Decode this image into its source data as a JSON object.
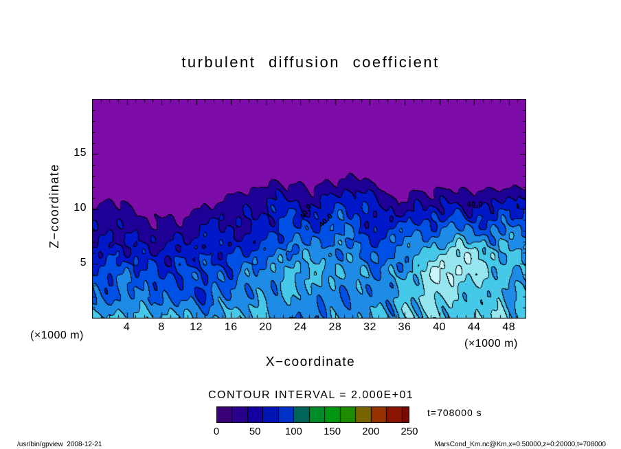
{
  "title": "turbulent diffusion coefficient",
  "axes": {
    "x_label": "X−coordinate",
    "z_label": "Z−coordinate",
    "x_unit": "(×1000 m)",
    "z_unit": "(×1000 m)",
    "x_ticks": [
      4,
      8,
      12,
      16,
      20,
      24,
      28,
      32,
      36,
      40,
      44,
      48
    ],
    "z_ticks": [
      5,
      10,
      15
    ]
  },
  "contour_note": "CONTOUR INTERVAL = 2.000E+01",
  "time_label": "t=708000 s",
  "colorbar": {
    "min": 0,
    "max": 250,
    "bin_size": 20,
    "tick_labels": [
      0,
      50,
      100,
      150,
      200,
      250
    ],
    "bin_colors": [
      "#3C0078",
      "#28008C",
      "#1400A0",
      "#0014B4",
      "#0032C8",
      "#00645A",
      "#008C28",
      "#009614",
      "#1E8C00",
      "#786400",
      "#963200",
      "#8C1400",
      "#780A00"
    ]
  },
  "footer": {
    "left": "/usr/bin/gpview  2008-12-21",
    "right": "MarsCond_Km.nc@Km,x=0:50000,z=0:20000,t=708000"
  },
  "chart_data": {
    "type": "heatmap",
    "title": "turbulent diffusion coefficient",
    "xlabel": "X−coordinate",
    "zlabel": "Z−coordinate",
    "x_range_m": [
      0,
      50000
    ],
    "z_range_m": [
      0,
      20000
    ],
    "value_range": [
      0,
      250
    ],
    "contour_interval": 20,
    "background_color": "#7D0CA8",
    "plot_bin_colors": [
      "#7D0CA8",
      "#1E0096",
      "#0018C8",
      "#0050E6",
      "#1E8CE6",
      "#46C8E8",
      "#96E6F0",
      "#C8F5F8",
      "#00A028",
      "#1E8C00",
      "#A03200",
      "#8C1400",
      "#780A00"
    ],
    "field": {
      "x_values_km": [
        0,
        2,
        4,
        6,
        8,
        10,
        12,
        14,
        16,
        18,
        20,
        22,
        24,
        26,
        28,
        30,
        32,
        34,
        36,
        38,
        40,
        42,
        44,
        46,
        48,
        50
      ],
      "z_values_km": [
        20,
        18,
        16,
        14,
        12,
        10,
        8,
        6,
        4,
        2,
        0
      ],
      "values": [
        [
          0,
          0,
          0,
          0,
          0,
          0,
          0,
          0,
          0,
          0,
          0,
          0,
          0,
          0,
          0,
          0,
          0,
          0,
          0,
          0,
          0,
          0,
          0,
          0,
          0,
          0
        ],
        [
          0,
          0,
          0,
          0,
          0,
          0,
          0,
          0,
          0,
          0,
          0,
          0,
          0,
          0,
          0,
          0,
          0,
          0,
          0,
          0,
          0,
          0,
          0,
          0,
          0,
          0
        ],
        [
          0,
          0,
          0,
          0,
          0,
          0,
          0,
          0,
          0,
          0,
          0,
          0,
          0,
          0,
          0,
          0,
          0,
          0,
          0,
          0,
          0,
          0,
          0,
          0,
          0,
          0
        ],
        [
          0,
          0,
          0,
          0,
          0,
          0,
          0,
          0,
          0,
          0,
          0,
          0,
          0,
          0,
          6,
          8,
          0,
          0,
          0,
          0,
          0,
          0,
          0,
          0,
          0,
          0
        ],
        [
          2,
          2,
          4,
          2,
          2,
          4,
          6,
          8,
          10,
          16,
          22,
          26,
          24,
          20,
          30,
          34,
          24,
          12,
          10,
          14,
          16,
          18,
          16,
          14,
          18,
          16
        ],
        [
          28,
          30,
          22,
          14,
          12,
          14,
          18,
          24,
          30,
          34,
          44,
          52,
          48,
          42,
          56,
          60,
          50,
          36,
          34,
          40,
          44,
          46,
          42,
          40,
          52,
          48
        ],
        [
          38,
          42,
          36,
          30,
          28,
          32,
          38,
          42,
          44,
          48,
          58,
          66,
          62,
          70,
          78,
          74,
          60,
          56,
          62,
          72,
          80,
          86,
          78,
          72,
          84,
          80
        ],
        [
          46,
          52,
          48,
          42,
          44,
          50,
          54,
          52,
          56,
          62,
          70,
          78,
          84,
          88,
          92,
          84,
          76,
          72,
          86,
          104,
          118,
          126,
          122,
          112,
          104,
          92
        ],
        [
          56,
          62,
          70,
          64,
          58,
          66,
          72,
          68,
          74,
          82,
          88,
          96,
          102,
          98,
          106,
          98,
          88,
          84,
          98,
          122,
          134,
          138,
          132,
          120,
          108,
          96
        ],
        [
          64,
          72,
          84,
          92,
          88,
          64,
          58,
          78,
          86,
          82,
          94,
          104,
          108,
          96,
          88,
          94,
          86,
          90,
          108,
          118,
          126,
          122,
          114,
          108,
          112,
          104
        ],
        [
          96,
          104,
          112,
          108,
          102,
          110,
          88,
          98,
          106,
          112,
          104,
          92,
          84,
          88,
          92,
          98,
          94,
          100,
          110,
          116,
          112,
          108,
          114,
          118,
          110,
          106
        ]
      ]
    },
    "contour_labels": [
      {
        "text": "40.0",
        "x_km": 24.7,
        "z_km": 9.7,
        "rotation_deg": -60
      },
      {
        "text": "40.0",
        "x_km": 27.0,
        "z_km": 8.9,
        "rotation_deg": -45
      },
      {
        "text": "40.0",
        "x_km": 44.1,
        "z_km": 10.3,
        "rotation_deg": 0
      }
    ]
  }
}
